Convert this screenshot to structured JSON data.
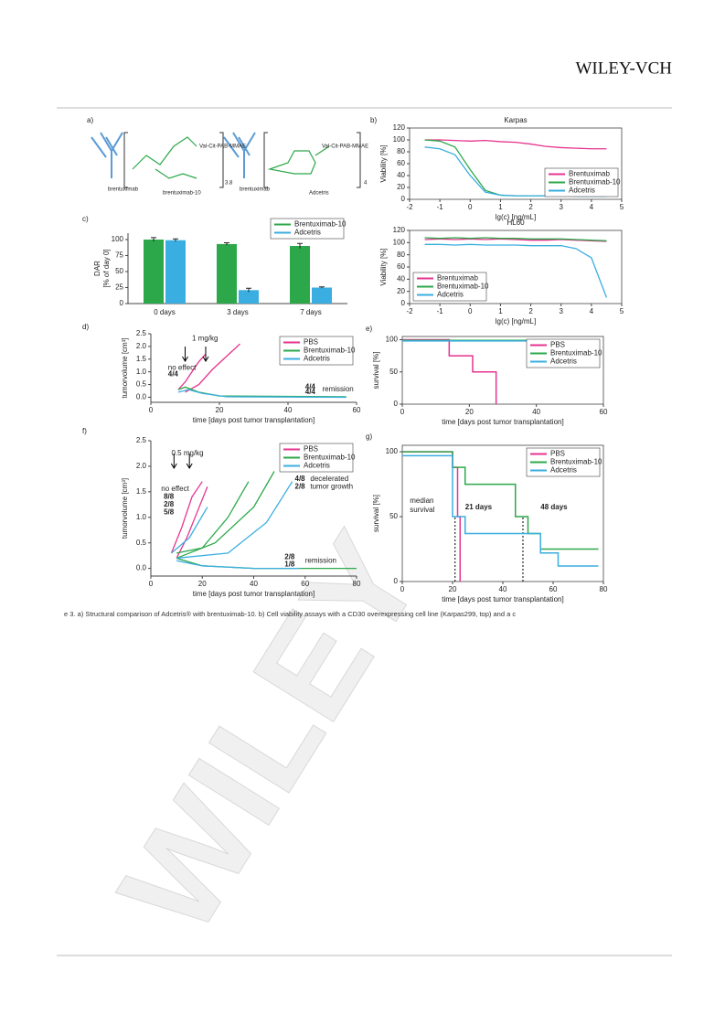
{
  "header": {
    "publisher": "WILEY-VCH"
  },
  "watermark": "WILEY",
  "panel_labels": [
    "a)",
    "b)",
    "c)",
    "d)",
    "e)",
    "f)",
    "g)"
  ],
  "structure": {
    "antibody_1": "brentuximab",
    "conjugate_1": "brentuximab-10",
    "dar_1": "3.8",
    "payload_1": "Val-Cit-PAB-MMAE",
    "antibody_2": "brentuximab",
    "conjugate_2": "Adcetris",
    "dar_2": "4",
    "payload_2": "Val-Cit-PAB-MMAE"
  },
  "chart_data": [
    {
      "type": "line",
      "title": "Karpas",
      "xlabel": "lg(c) [ng/mL]",
      "ylabel": "Viability [%]",
      "xlim": [
        -2,
        5
      ],
      "xticks": [
        -2,
        -1,
        0,
        1,
        2,
        3,
        4,
        5
      ],
      "ylim": [
        0,
        120
      ],
      "yticks": [
        0,
        20,
        40,
        60,
        80,
        100,
        120
      ],
      "legend": "lower right",
      "x": [
        -1.5,
        -1,
        -0.5,
        0,
        0.5,
        1,
        1.5,
        2,
        2.5,
        3,
        3.5,
        4,
        4.5
      ],
      "series": [
        {
          "name": "Brentuximab",
          "color": "#e6338f",
          "values": [
            100,
            100,
            99,
            98,
            99,
            97,
            96,
            93,
            89,
            87,
            86,
            85,
            85
          ]
        },
        {
          "name": "Brentuximab-10",
          "color": "#2ca84a",
          "values": [
            100,
            98,
            88,
            50,
            15,
            7,
            6,
            6,
            6,
            6,
            6,
            6,
            6
          ]
        },
        {
          "name": "Adcetris",
          "color": "#3aaee0",
          "values": [
            88,
            85,
            75,
            40,
            12,
            7,
            6,
            6,
            6,
            6,
            5,
            5,
            5
          ]
        }
      ]
    },
    {
      "type": "line",
      "title": "HL60",
      "xlabel": "lg(c) [ng/mL]",
      "ylabel": "Viability [%]",
      "xlim": [
        -2,
        5
      ],
      "xticks": [
        -2,
        -1,
        0,
        1,
        2,
        3,
        4,
        5
      ],
      "ylim": [
        0,
        120
      ],
      "yticks": [
        0,
        20,
        40,
        60,
        80,
        100,
        120
      ],
      "legend": "lower left",
      "x": [
        -1.5,
        -1,
        -0.5,
        0,
        0.5,
        1,
        1.5,
        2,
        2.5,
        3,
        3.5,
        4,
        4.5
      ],
      "series": [
        {
          "name": "Brentuximab",
          "color": "#e6338f",
          "values": [
            105,
            106,
            105,
            106,
            105,
            106,
            105,
            104,
            104,
            105,
            104,
            103,
            102
          ]
        },
        {
          "name": "Brentuximab-10",
          "color": "#2ca84a",
          "values": [
            108,
            107,
            108,
            107,
            108,
            107,
            107,
            106,
            106,
            106,
            105,
            104,
            103
          ]
        },
        {
          "name": "Adcetris",
          "color": "#3aaee0",
          "values": [
            97,
            97,
            96,
            97,
            96,
            96,
            96,
            95,
            95,
            95,
            90,
            75,
            10
          ]
        }
      ]
    },
    {
      "type": "bar",
      "ylabel": [
        "DAR",
        "[% of day 0]"
      ],
      "categories": [
        "0 days",
        "3 days",
        "7 days"
      ],
      "ylim": [
        0,
        110
      ],
      "yticks": [
        0,
        25,
        50,
        75,
        100
      ],
      "legend": "upper right",
      "series": [
        {
          "name": "Brentuximab-10",
          "color": "#2ca84a",
          "values": [
            100,
            93,
            90
          ],
          "errors": [
            3,
            2,
            4
          ]
        },
        {
          "name": "Adcetris",
          "color": "#3aaee0",
          "values": [
            99,
            21,
            25
          ],
          "errors": [
            2,
            3,
            1
          ]
        }
      ]
    },
    {
      "type": "tumor",
      "xlabel": "time [days post tumor transplantation]",
      "ylabel": "tumorvolume [cm³]",
      "xlim": [
        0,
        60
      ],
      "xticks": [
        0,
        20,
        40,
        60
      ],
      "ylim": [
        -0.2,
        2.5
      ],
      "yticks": [
        {
          "value": 0,
          "label": "0.0"
        },
        0.5,
        {
          "value": 1,
          "label": "1.0"
        },
        1.5,
        {
          "value": 2,
          "label": "2.0"
        },
        2.5
      ],
      "legend": "upper right",
      "series": [
        {
          "name": "PBS",
          "color": "#e6338f",
          "lines": [
            {
              "x": [
                8,
                10,
                12,
                14,
                16
              ],
              "values": [
                0.3,
                0.6,
                1.0,
                1.4,
                1.7
              ]
            },
            {
              "x": [
                10,
                14,
                18,
                22,
                26
              ],
              "values": [
                0.2,
                0.5,
                1.1,
                1.6,
                2.1
              ]
            }
          ]
        },
        {
          "name": "Brentuximab-10",
          "color": "#2ca84a",
          "lines": [
            {
              "x": [
                8,
                10,
                14,
                20,
                57
              ],
              "values": [
                0.3,
                0.4,
                0.2,
                0.05,
                0.02
              ]
            }
          ]
        },
        {
          "name": "Adcetris",
          "color": "#3aaee0",
          "lines": [
            {
              "x": [
                8,
                11,
                15,
                22,
                57
              ],
              "values": [
                0.2,
                0.3,
                0.15,
                0.02,
                0
              ]
            }
          ]
        }
      ],
      "annotations": [
        {
          "text": "1 mg/kg",
          "color": "#000"
        },
        {
          "text": "no effect",
          "color": "#000"
        },
        {
          "text": "4/4",
          "color": "#e6338f"
        },
        {
          "text": "4/4",
          "color": "#2ca84a"
        },
        {
          "text": "4/4",
          "color": "#3aaee0"
        },
        {
          "text": "remission",
          "color": "#000"
        }
      ]
    },
    {
      "type": "step",
      "ylabel": "survival [%]",
      "xlabel": "time [days post tumor transplantation]",
      "xlim": [
        0,
        60
      ],
      "xticks": [
        0,
        20,
        40,
        60
      ],
      "ylim": [
        0,
        105
      ],
      "yticks": [
        0,
        50,
        100
      ],
      "legend": "upper right",
      "series": [
        {
          "name": "PBS",
          "color": "#e6338f",
          "x": [
            0,
            14,
            21,
            28
          ],
          "values": [
            100,
            75,
            50,
            0
          ]
        },
        {
          "name": "Brentuximab-10",
          "color": "#2ca84a",
          "x": [
            0,
            57
          ],
          "values": [
            99,
            99
          ]
        },
        {
          "name": "Adcetris",
          "color": "#3aaee0",
          "x": [
            0,
            57
          ],
          "values": [
            98,
            98
          ]
        }
      ]
    },
    {
      "type": "tumor",
      "xlabel": "time [days post tumor transplantation]",
      "ylabel": "tumorvolume [cm³]",
      "xlim": [
        0,
        80
      ],
      "xticks": [
        0,
        20,
        40,
        60,
        80
      ],
      "ylim": [
        -0.15,
        2.5
      ],
      "yticks": [
        {
          "value": 0,
          "label": "0.0"
        },
        0.5,
        {
          "value": 1,
          "label": "1.0"
        },
        1.5,
        {
          "value": 2,
          "label": "2.0"
        },
        2.5
      ],
      "legend": "upper right",
      "series": [
        {
          "name": "PBS",
          "color": "#e6338f",
          "lines": [
            {
              "x": [
                8,
                12,
                16,
                20
              ],
              "values": [
                0.3,
                0.8,
                1.4,
                1.7
              ]
            },
            {
              "x": [
                10,
                14,
                18,
                22
              ],
              "values": [
                0.2,
                0.6,
                1.1,
                1.6
              ]
            }
          ]
        },
        {
          "name": "Brentuximab-10",
          "color": "#2ca84a",
          "lines": [
            {
              "x": [
                10,
                20,
                30,
                38
              ],
              "values": [
                0.3,
                0.4,
                1.0,
                1.7
              ]
            },
            {
              "x": [
                10,
                25,
                40,
                48
              ],
              "values": [
                0.2,
                0.5,
                1.2,
                1.9
              ]
            },
            {
              "x": [
                10,
                20,
                40,
                80
              ],
              "values": [
                0.2,
                0.05,
                0,
                0
              ]
            }
          ]
        },
        {
          "name": "Adcetris",
          "color": "#3aaee0",
          "lines": [
            {
              "x": [
                8,
                15,
                22
              ],
              "values": [
                0.3,
                0.6,
                1.2
              ]
            },
            {
              "x": [
                10,
                30,
                45,
                55
              ],
              "values": [
                0.2,
                0.3,
                0.9,
                1.7
              ]
            },
            {
              "x": [
                10,
                20,
                40,
                58
              ],
              "values": [
                0.15,
                0.05,
                0,
                0
              ]
            }
          ]
        }
      ],
      "annotations": [
        {
          "text": "0.5 mg/kg",
          "color": "#000"
        },
        {
          "text": "no effect",
          "color": "#000"
        },
        {
          "text": "8/8",
          "color": "#e6338f"
        },
        {
          "text": "2/8",
          "color": "#2ca84a"
        },
        {
          "text": "5/8",
          "color": "#3aaee0"
        },
        {
          "text": "4/8",
          "color": "#2ca84a"
        },
        {
          "text": "2/8",
          "color": "#3aaee0"
        },
        {
          "text": "decelerated",
          "color": "#000"
        },
        {
          "text": "tumor growth",
          "color": "#000"
        },
        {
          "text": "2/8",
          "color": "#2ca84a"
        },
        {
          "text": "1/8",
          "color": "#3aaee0"
        },
        {
          "text": "remission",
          "color": "#000"
        }
      ]
    },
    {
      "type": "step",
      "ylabel": "survival [%]",
      "xlabel": "time [days post tumor transplantation]",
      "xlim": [
        0,
        80
      ],
      "xticks": [
        0,
        20,
        40,
        60,
        80
      ],
      "ylim": [
        0,
        105
      ],
      "yticks": [
        0,
        50,
        100
      ],
      "legend": "upper right",
      "series": [
        {
          "name": "PBS",
          "color": "#e6338f",
          "x": [
            0,
            20,
            22,
            23
          ],
          "values": [
            100,
            88,
            50,
            0
          ]
        },
        {
          "name": "Brentuximab-10",
          "color": "#2ca84a",
          "x": [
            0,
            20,
            25,
            45,
            50,
            55,
            78
          ],
          "values": [
            100,
            88,
            75,
            50,
            37,
            25,
            25
          ]
        },
        {
          "name": "Adcetris",
          "color": "#3aaee0",
          "x": [
            0,
            20,
            25,
            40,
            55,
            62,
            78
          ],
          "values": [
            97,
            50,
            37,
            37,
            22,
            12,
            12
          ]
        }
      ],
      "median": {
        "x": [
          21,
          48
        ],
        "y": 50
      },
      "annotations": [
        {
          "text": "median",
          "color": "#000"
        },
        {
          "text": "survival",
          "color": "#000"
        },
        {
          "text": "21 days",
          "color": "#3aaee0"
        },
        {
          "text": "48 days",
          "color": "#2ca84a"
        }
      ]
    }
  ],
  "caption": "e 3. a) Structural comparison of Adcetris® with brentuximab-10. b) Cell viability assays with a CD30 overexpressing cell line (Karpas299, top) and a c"
}
